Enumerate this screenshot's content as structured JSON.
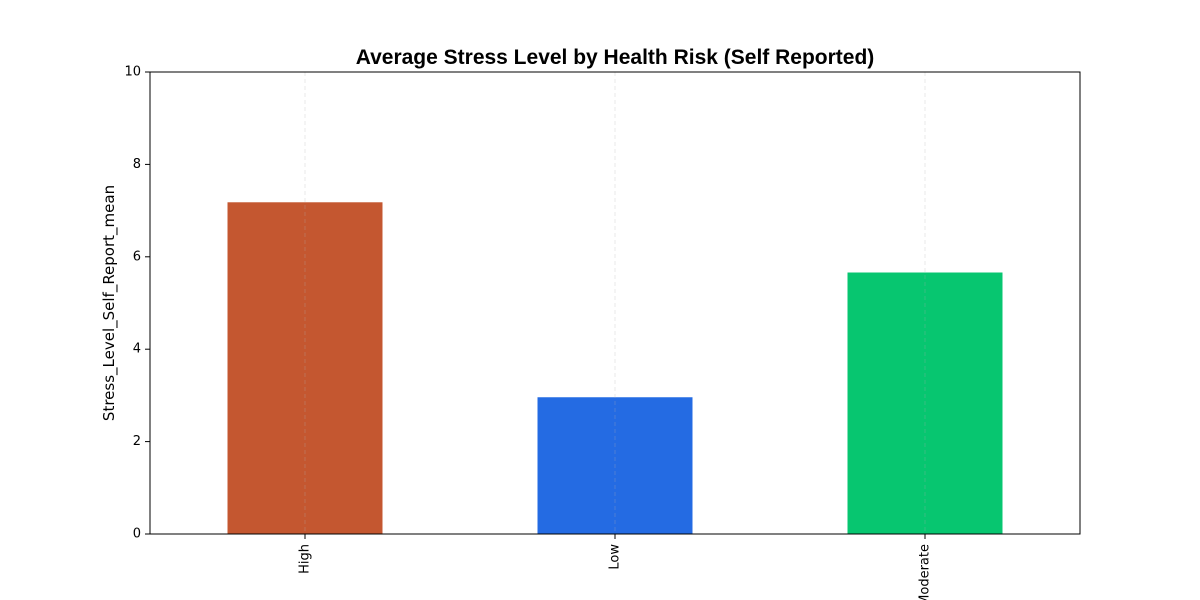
{
  "chart_data": {
    "type": "bar",
    "title": "Average Stress Level by Health Risk (Self Reported)",
    "xlabel": "",
    "ylabel": "Stress_Level_Self_Report_mean",
    "categories": [
      "High",
      "Low",
      "Moderate"
    ],
    "values": [
      7.18,
      2.96,
      5.66
    ],
    "colors": [
      "#c45730",
      "#246be3",
      "#07c670"
    ],
    "ylim": [
      0,
      10
    ],
    "yticks": [
      0,
      2,
      4,
      6,
      8,
      10
    ],
    "grid": "vertical-dashed",
    "legend": "none"
  }
}
